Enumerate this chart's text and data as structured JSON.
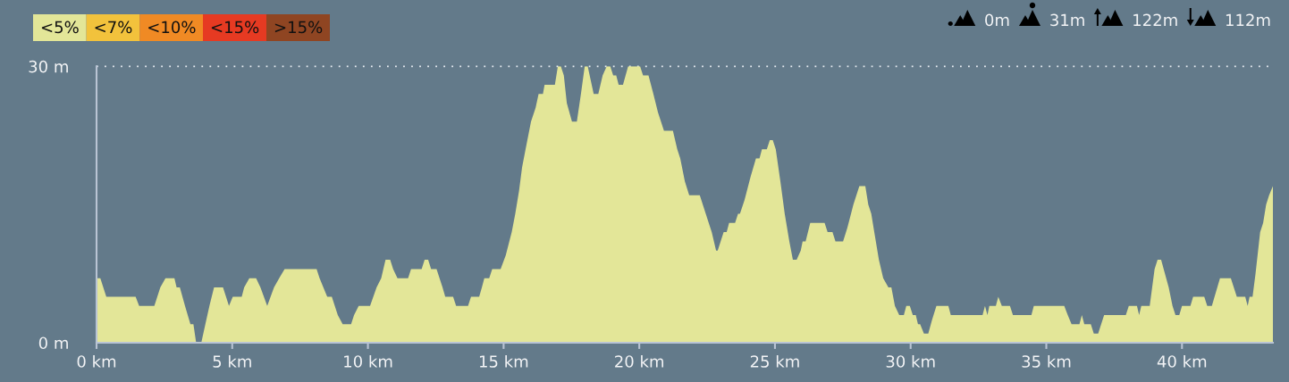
{
  "chart_data": {
    "type": "area",
    "series": [
      {
        "name": "<5%",
        "color": "#e3e698",
        "x": [
          0,
          0.14,
          0.36,
          1.44,
          1.57,
          2.13,
          2.35,
          2.54,
          2.87,
          2.95,
          3.07,
          3.26,
          3.46,
          3.57,
          3.67,
          3.86,
          4.01,
          4.16,
          4.33,
          4.66,
          4.88,
          5.02,
          5.35,
          5.44,
          5.63,
          5.88,
          6.04,
          6.29,
          6.54,
          6.73,
          6.93,
          8.11,
          8.22,
          8.5,
          8.67,
          8.89,
          9.07,
          9.38,
          9.49,
          9.66,
          10.08,
          10.32,
          10.49,
          10.65,
          10.82,
          10.93,
          11.09,
          11.48,
          11.59,
          11.98,
          12.09,
          12.22,
          12.33,
          12.53,
          12.75,
          12.85,
          13.14,
          13.25,
          13.69,
          13.8,
          14.1,
          14.2,
          14.29,
          14.47,
          14.58,
          14.89,
          15.08,
          15.3,
          15.43,
          15.57,
          15.68,
          15.81,
          16.01,
          16.18,
          16.29,
          16.45,
          16.51,
          16.89,
          17.0,
          17.11,
          17.22,
          17.33,
          17.52,
          17.7,
          17.85,
          17.99,
          18.1,
          18.21,
          18.32,
          18.49,
          18.65,
          18.8,
          18.93,
          19.04,
          19.15,
          19.24,
          19.4,
          19.59,
          20.03,
          20.14,
          20.34,
          20.52,
          20.69,
          20.91,
          21.24,
          21.4,
          21.51,
          21.68,
          21.84,
          22.23,
          22.45,
          22.67,
          22.83,
          22.89,
          23.11,
          23.22,
          23.31,
          23.53,
          23.64,
          23.71,
          23.88,
          24.1,
          24.3,
          24.43,
          24.52,
          24.7,
          24.81,
          24.92,
          25.03,
          25.2,
          25.36,
          25.53,
          25.66,
          25.8,
          25.95,
          26.02,
          26.13,
          26.3,
          26.83,
          26.94,
          27.12,
          27.23,
          27.51,
          27.67,
          27.89,
          28.11,
          28.33,
          28.44,
          28.55,
          28.66,
          28.83,
          28.99,
          29.18,
          29.29,
          29.42,
          29.58,
          29.75,
          29.84,
          29.97,
          30.08,
          30.19,
          30.27,
          30.35,
          30.49,
          30.65,
          30.79,
          30.95,
          31.39,
          31.48,
          32.65,
          32.74,
          32.83,
          32.9,
          33.14,
          33.23,
          33.36,
          33.66,
          33.77,
          34.45,
          34.54,
          35.66,
          35.79,
          35.93,
          36.22,
          36.31,
          36.4,
          36.64,
          36.75,
          36.91,
          37.13,
          37.93,
          38.04,
          38.34,
          38.42,
          38.5,
          38.81,
          38.99,
          39.1,
          39.23,
          39.51,
          39.65,
          39.76,
          39.9,
          40.0,
          40.31,
          40.41,
          40.82,
          40.93,
          41.1,
          41.4,
          41.8,
          42.02,
          42.33,
          42.42,
          42.49,
          42.6,
          42.71,
          42.88,
          42.99,
          43.1,
          43.21,
          43.35
        ],
        "values": [
          7,
          7,
          5,
          5,
          4,
          4,
          6,
          7,
          7,
          6,
          6,
          4,
          2,
          2,
          0,
          0,
          2,
          4,
          6,
          6,
          4,
          5,
          5,
          6,
          7,
          7,
          6,
          4,
          6,
          7,
          8,
          8,
          7,
          5,
          5,
          3,
          2,
          2,
          3,
          4,
          4,
          6,
          7,
          9,
          9,
          8,
          7,
          7,
          8,
          8,
          9,
          9,
          8,
          8,
          6,
          5,
          5,
          4,
          4,
          5,
          5,
          6,
          7,
          7,
          8,
          8,
          9.5,
          12,
          14,
          16.5,
          19,
          21,
          24,
          25.5,
          27,
          27,
          28,
          28,
          30,
          30,
          29,
          26,
          24,
          24,
          27,
          30,
          30,
          28.5,
          27,
          27,
          29,
          30,
          30,
          29,
          29,
          28,
          28,
          30,
          30,
          29,
          29,
          27,
          25,
          23,
          23,
          21,
          20,
          17.5,
          16,
          16,
          14,
          12,
          10,
          10,
          12,
          12,
          13,
          13,
          14,
          14,
          15.5,
          18,
          20,
          20,
          21,
          21,
          22,
          22,
          21,
          17.5,
          14,
          11,
          9,
          9,
          10,
          11,
          11,
          13,
          13,
          12,
          12,
          11,
          11,
          12.5,
          15,
          17,
          17,
          15,
          14,
          12,
          9,
          7,
          6,
          6,
          4,
          3,
          3,
          4,
          4,
          3,
          3,
          2,
          2,
          1,
          1,
          2.5,
          4,
          4,
          3,
          3,
          4,
          3,
          4,
          4,
          5,
          4,
          4,
          3,
          3,
          4,
          4,
          3,
          2,
          2,
          3,
          2,
          2,
          1,
          1,
          3,
          3,
          4,
          4,
          3,
          4,
          4,
          8,
          9,
          9,
          6,
          4,
          3,
          3,
          4,
          4,
          5,
          5,
          4,
          4,
          7,
          7,
          5,
          5,
          4,
          5,
          5,
          7.5,
          12,
          13,
          15,
          16,
          17
        ]
      },
      {
        "name": "<7%",
        "color": "#f2c23c"
      },
      {
        "name": "<10%",
        "color": "#f08a24"
      },
      {
        "name": "<15%",
        "color": "#e63a22"
      },
      {
        "name": ">15%",
        "color": "#8f4522"
      }
    ],
    "xlim": [
      0,
      43.35
    ],
    "ylim": [
      0,
      30
    ],
    "xticks": [
      {
        "value": 0,
        "label": "0 km"
      },
      {
        "value": 5,
        "label": "5 km"
      },
      {
        "value": 10,
        "label": "10 km"
      },
      {
        "value": 15,
        "label": "15 km"
      },
      {
        "value": 20,
        "label": "20 km"
      },
      {
        "value": 25,
        "label": "25 km"
      },
      {
        "value": 30,
        "label": "30 km"
      },
      {
        "value": 35,
        "label": "35 km"
      },
      {
        "value": 40,
        "label": "40 km"
      }
    ],
    "yticks": [
      {
        "value": 0,
        "label": "0 m"
      },
      {
        "value": 30,
        "label": "30 m"
      }
    ],
    "ref_lines": [
      {
        "axis": "y",
        "value": 30,
        "color": "#e8edf2",
        "line_style": "dotted"
      }
    ],
    "legend": "top left",
    "annotations": [
      "0m",
      "31m",
      "122m",
      "112m"
    ]
  }
}
